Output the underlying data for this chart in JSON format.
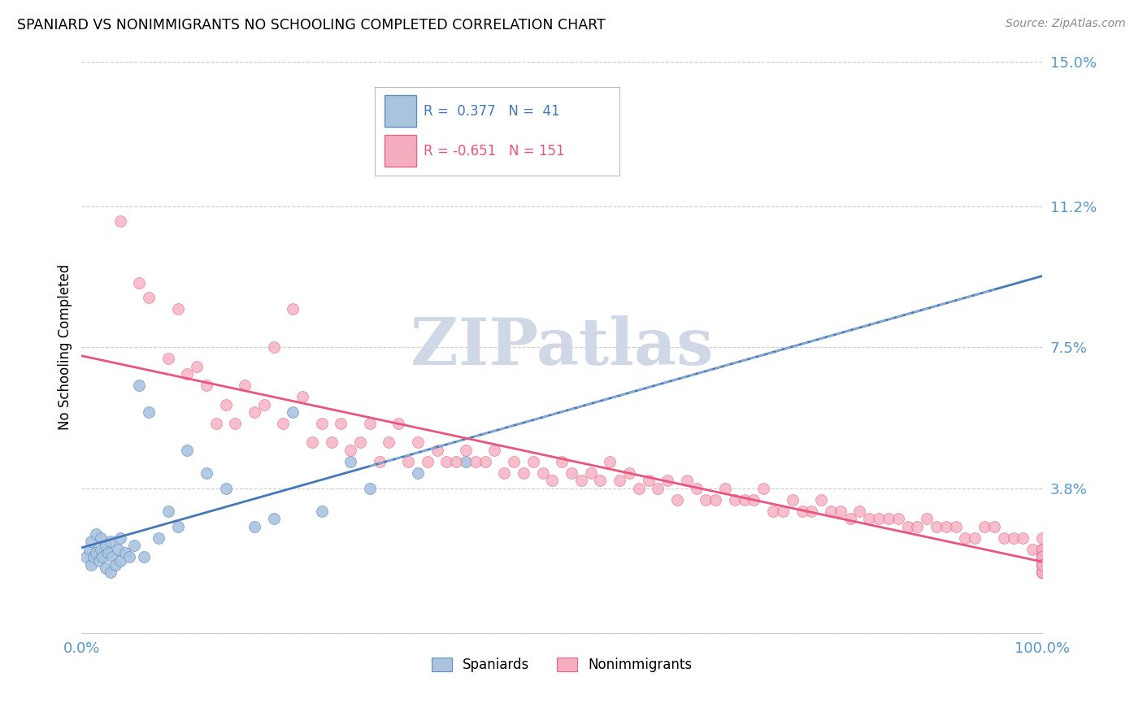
{
  "title": "SPANIARD VS NONIMMIGRANTS NO SCHOOLING COMPLETED CORRELATION CHART",
  "source": "Source: ZipAtlas.com",
  "ylabel": "No Schooling Completed",
  "xlim": [
    0,
    100
  ],
  "ylim": [
    0,
    15
  ],
  "ytick_values": [
    0,
    3.8,
    7.5,
    11.2,
    15.0
  ],
  "ytick_labels": [
    "",
    "3.8%",
    "7.5%",
    "11.2%",
    "15.0%"
  ],
  "spaniards_color": "#aac4de",
  "nonimmigrants_color": "#f5aec0",
  "spaniards_edge_color": "#5b8fc9",
  "nonimmigrants_edge_color": "#e8638a",
  "spaniards_line_color": "#4477bb",
  "nonimmigrants_line_color": "#e85580",
  "dashed_line_color": "#99bbdd",
  "r_spaniard": 0.377,
  "n_spaniard": 41,
  "r_nonimmigrant": -0.651,
  "n_nonimmigrant": 151,
  "background_color": "#ffffff",
  "grid_color": "#cccccc",
  "ytick_color": "#5599cc",
  "xtick_color": "#5599cc",
  "watermark_color": "#d0d8e8",
  "spaniards_scatter_x": [
    0.5,
    0.8,
    1.0,
    1.0,
    1.2,
    1.5,
    1.5,
    1.8,
    2.0,
    2.0,
    2.2,
    2.5,
    2.5,
    2.8,
    3.0,
    3.0,
    3.2,
    3.5,
    3.8,
    4.0,
    4.0,
    4.5,
    5.0,
    5.5,
    6.0,
    6.5,
    7.0,
    8.0,
    9.0,
    10.0,
    11.0,
    13.0,
    15.0,
    18.0,
    20.0,
    22.0,
    25.0,
    28.0,
    30.0,
    35.0,
    40.0
  ],
  "spaniards_scatter_y": [
    2.0,
    2.2,
    1.8,
    2.4,
    2.0,
    2.1,
    2.6,
    1.9,
    2.2,
    2.5,
    2.0,
    1.7,
    2.3,
    2.1,
    1.6,
    2.4,
    2.0,
    1.8,
    2.2,
    1.9,
    2.5,
    2.1,
    2.0,
    2.3,
    6.5,
    2.0,
    5.8,
    2.5,
    3.2,
    2.8,
    4.8,
    4.2,
    3.8,
    2.8,
    3.0,
    5.8,
    3.2,
    4.5,
    3.8,
    4.2,
    4.5
  ],
  "nonimmigrants_scatter_x": [
    4,
    6,
    7,
    9,
    10,
    11,
    12,
    13,
    14,
    15,
    16,
    17,
    18,
    19,
    20,
    21,
    22,
    23,
    24,
    25,
    26,
    27,
    28,
    29,
    30,
    31,
    32,
    33,
    34,
    35,
    36,
    37,
    38,
    39,
    40,
    41,
    42,
    43,
    44,
    45,
    46,
    47,
    48,
    49,
    50,
    51,
    52,
    53,
    54,
    55,
    56,
    57,
    58,
    59,
    60,
    61,
    62,
    63,
    64,
    65,
    66,
    67,
    68,
    69,
    70,
    71,
    72,
    73,
    74,
    75,
    76,
    77,
    78,
    79,
    80,
    81,
    82,
    83,
    84,
    85,
    86,
    87,
    88,
    89,
    90,
    91,
    92,
    93,
    94,
    95,
    96,
    97,
    98,
    99,
    100,
    100,
    100,
    100,
    100,
    100,
    100,
    100,
    100,
    100,
    100,
    100,
    100,
    100,
    100,
    100,
    100,
    100,
    100,
    100,
    100,
    100,
    100,
    100,
    100,
    100,
    100,
    100,
    100,
    100,
    100,
    100,
    100,
    100,
    100,
    100,
    100,
    100,
    100,
    100,
    100,
    100,
    100,
    100,
    100,
    100,
    100,
    100,
    100,
    100,
    100,
    100,
    100,
    100,
    100,
    100,
    100
  ],
  "nonimmigrants_scatter_y": [
    10.8,
    9.2,
    8.8,
    7.2,
    8.5,
    6.8,
    7.0,
    6.5,
    5.5,
    6.0,
    5.5,
    6.5,
    5.8,
    6.0,
    7.5,
    5.5,
    8.5,
    6.2,
    5.0,
    5.5,
    5.0,
    5.5,
    4.8,
    5.0,
    5.5,
    4.5,
    5.0,
    5.5,
    4.5,
    5.0,
    4.5,
    4.8,
    4.5,
    4.5,
    4.8,
    4.5,
    4.5,
    4.8,
    4.2,
    4.5,
    4.2,
    4.5,
    4.2,
    4.0,
    4.5,
    4.2,
    4.0,
    4.2,
    4.0,
    4.5,
    4.0,
    4.2,
    3.8,
    4.0,
    3.8,
    4.0,
    3.5,
    4.0,
    3.8,
    3.5,
    3.5,
    3.8,
    3.5,
    3.5,
    3.5,
    3.8,
    3.2,
    3.2,
    3.5,
    3.2,
    3.2,
    3.5,
    3.2,
    3.2,
    3.0,
    3.2,
    3.0,
    3.0,
    3.0,
    3.0,
    2.8,
    2.8,
    3.0,
    2.8,
    2.8,
    2.8,
    2.5,
    2.5,
    2.8,
    2.8,
    2.5,
    2.5,
    2.5,
    2.2,
    2.2,
    2.5,
    2.2,
    2.0,
    2.2,
    2.0,
    2.0,
    2.0,
    2.0,
    2.0,
    2.2,
    2.0,
    1.8,
    2.2,
    2.0,
    1.8,
    1.8,
    1.8,
    2.0,
    1.8,
    1.8,
    2.0,
    1.8,
    1.6,
    1.8,
    1.8,
    1.6,
    1.8,
    1.6,
    1.8,
    1.8,
    1.6,
    1.6,
    1.8,
    1.8,
    2.0,
    1.8,
    1.6,
    1.8,
    1.6,
    1.8,
    1.8,
    1.6,
    1.8,
    1.6,
    1.8,
    2.2,
    1.8,
    1.8,
    1.6,
    1.8,
    1.8,
    2.0,
    1.8,
    1.6,
    1.6,
    1.8
  ]
}
